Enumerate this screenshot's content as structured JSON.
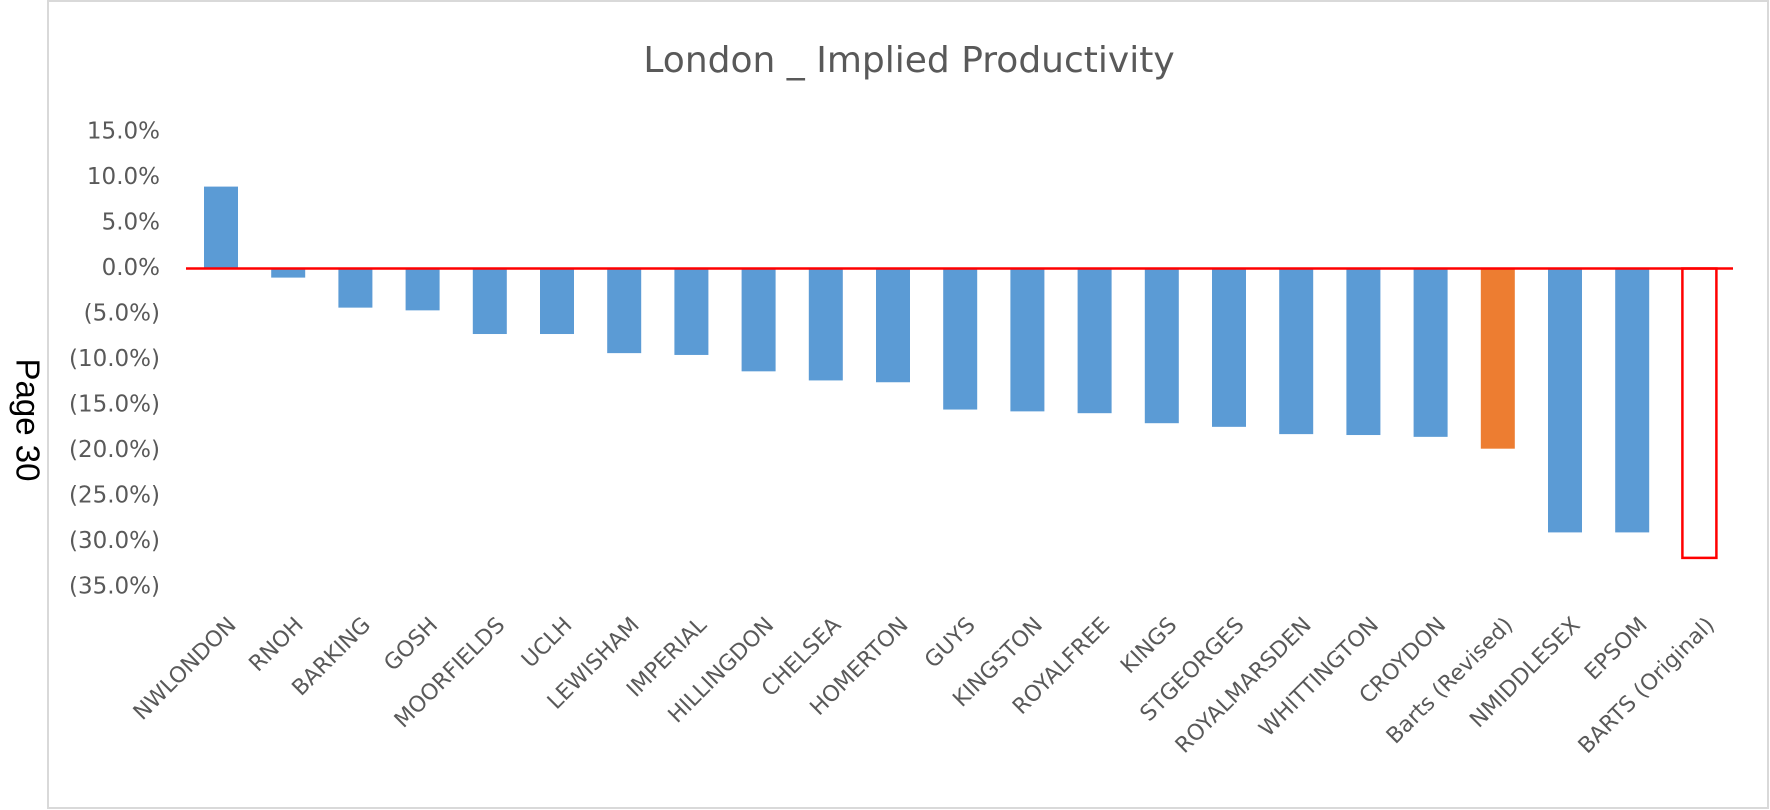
{
  "side_label": "Page 30",
  "chart_data": {
    "type": "bar",
    "title": "London _ Implied Productivity",
    "categories": [
      "NWLONDON",
      "RNOH",
      "BARKING",
      "GOSH",
      "MOORFIELDS",
      "UCLH",
      "LEWISHAM",
      "IMPERIAL",
      "HILLINGDON",
      "CHELSEA",
      "HOMERTON",
      "GUYS",
      "KINGSTON",
      "ROYALFREE",
      "KINGS",
      "STGEORGES",
      "ROYALMARSDEN",
      "WHITTINGTON",
      "CROYDON",
      "Barts (Revised)",
      "NMIDDLESEX",
      "EPSOM",
      "BARTS (Original)"
    ],
    "values": [
      9.0,
      -1.0,
      -4.3,
      -4.6,
      -7.2,
      -7.2,
      -9.3,
      -9.5,
      -11.3,
      -12.3,
      -12.5,
      -15.5,
      -15.7,
      -15.9,
      -17.0,
      -17.4,
      -18.2,
      -18.3,
      -18.5,
      -19.8,
      -29.0,
      -29.0,
      -31.8
    ],
    "colors": [
      "#5b9bd5",
      "#5b9bd5",
      "#5b9bd5",
      "#5b9bd5",
      "#5b9bd5",
      "#5b9bd5",
      "#5b9bd5",
      "#5b9bd5",
      "#5b9bd5",
      "#5b9bd5",
      "#5b9bd5",
      "#5b9bd5",
      "#5b9bd5",
      "#5b9bd5",
      "#5b9bd5",
      "#5b9bd5",
      "#5b9bd5",
      "#5b9bd5",
      "#5b9bd5",
      "#ed7d31",
      "#5b9bd5",
      "#5b9bd5",
      "#ff0000"
    ],
    "styles": [
      "solid",
      "solid",
      "solid",
      "solid",
      "solid",
      "solid",
      "solid",
      "solid",
      "solid",
      "solid",
      "solid",
      "solid",
      "solid",
      "solid",
      "solid",
      "solid",
      "solid",
      "solid",
      "solid",
      "solid",
      "solid",
      "solid",
      "outline"
    ],
    "zero_line_color": "#ff0000",
    "ylim": [
      -35,
      15
    ],
    "yticks": [
      {
        "value": -35,
        "label": "(35.0%)"
      },
      {
        "value": -30,
        "label": "(30.0%)"
      },
      {
        "value": -25,
        "label": "(25.0%)"
      },
      {
        "value": -20,
        "label": "(20.0%)"
      },
      {
        "value": -15,
        "label": "(15.0%)"
      },
      {
        "value": -10,
        "label": "(10.0%)"
      },
      {
        "value": -5,
        "label": "(5.0%)"
      },
      {
        "value": 0,
        "label": "0.0%"
      },
      {
        "value": 5,
        "label": "5.0%"
      },
      {
        "value": 10,
        "label": "10.0%"
      },
      {
        "value": 15,
        "label": "15.0%"
      }
    ],
    "grid": false
  }
}
